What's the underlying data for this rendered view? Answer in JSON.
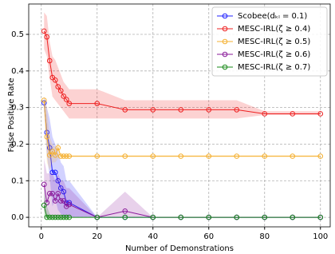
{
  "chart_data": {
    "type": "line",
    "x_label": "Number of Demonstrations",
    "y_label": "False Positive Rate",
    "x": [
      1,
      2,
      3,
      4,
      5,
      6,
      7,
      8,
      9,
      10,
      20,
      30,
      40,
      50,
      60,
      70,
      80,
      90,
      100
    ],
    "xlim": [
      -4.5,
      103.5
    ],
    "xticks": [
      0,
      20,
      40,
      60,
      80,
      100
    ],
    "ylim": [
      -0.026,
      0.583
    ],
    "yticks": [
      {
        "value": 0,
        "label": "0.0"
      },
      0.1,
      0.2,
      0.3,
      0.4,
      0.5
    ],
    "grid": true,
    "legend": "upper right",
    "series": [
      {
        "name": "Scobee(dₖₗ = 0.1)",
        "color": "#2020ff",
        "values": [
          0.313,
          0.232,
          0.19,
          0.123,
          0.123,
          0.1,
          0.08,
          0.07,
          0.04,
          0.04,
          0,
          0,
          0,
          0,
          0,
          0,
          0,
          0,
          0
        ],
        "upper": [
          0.33,
          0.3,
          0.27,
          0.22,
          0.2,
          0.18,
          0.15,
          0.14,
          0.1,
          0.1,
          0,
          0,
          0,
          0,
          0,
          0,
          0,
          0,
          0
        ],
        "lower": [
          0.3,
          0.17,
          0.11,
          0.03,
          0.05,
          0.02,
          0.01,
          0,
          0,
          0,
          0,
          0,
          0,
          0,
          0,
          0,
          0,
          0,
          0
        ]
      },
      {
        "name": "MESC-IRL(ζ ≥ 0.4)",
        "color": "#ee2020",
        "values": [
          0.509,
          0.493,
          0.428,
          0.382,
          0.375,
          0.357,
          0.346,
          0.331,
          0.322,
          0.311,
          0.311,
          0.294,
          0.294,
          0.294,
          0.294,
          0.294,
          0.283,
          0.283,
          0.283
        ],
        "upper": [
          0.56,
          0.55,
          0.48,
          0.44,
          0.43,
          0.41,
          0.39,
          0.37,
          0.36,
          0.35,
          0.35,
          0.32,
          0.32,
          0.32,
          0.32,
          0.32,
          0.29,
          0.29,
          0.29
        ],
        "lower": [
          0.46,
          0.44,
          0.38,
          0.33,
          0.32,
          0.31,
          0.3,
          0.29,
          0.28,
          0.27,
          0.27,
          0.27,
          0.27,
          0.27,
          0.27,
          0.27,
          0.28,
          0.28,
          0.28
        ]
      },
      {
        "name": "MESC-IRL(ζ ≥ 0.5)",
        "color": "#f5b030",
        "values": [
          0.32,
          0.22,
          0.17,
          0.18,
          0.17,
          0.19,
          0.167,
          0.167,
          0.167,
          0.167,
          0.167,
          0.167,
          0.167,
          0.167,
          0.167,
          0.167,
          0.167,
          0.167,
          0.167
        ],
        "upper": [
          0.33,
          0.3,
          0.22,
          0.2,
          0.19,
          0.2,
          0.17,
          0.17,
          0.17,
          0.17,
          0.17,
          0.17,
          0.17,
          0.17,
          0.17,
          0.17,
          0.17,
          0.17,
          0.17
        ],
        "lower": [
          0.3,
          0.15,
          0.13,
          0.15,
          0.15,
          0.16,
          0.165,
          0.165,
          0.165,
          0.165,
          0.165,
          0.165,
          0.165,
          0.165,
          0.165,
          0.165,
          0.165,
          0.165,
          0.165
        ]
      },
      {
        "name": "MESC-IRL(ζ ≥ 0.6)",
        "color": "#8a1a9a",
        "values": [
          0.09,
          0.04,
          0.065,
          0.065,
          0.045,
          0.065,
          0.045,
          0.045,
          0.03,
          0.035,
          0,
          0.017,
          0,
          0,
          0,
          0,
          0,
          0,
          0
        ],
        "upper": [
          0.16,
          0.12,
          0.12,
          0.12,
          0.1,
          0.12,
          0.1,
          0.1,
          0.08,
          0.08,
          0,
          0.07,
          0,
          0,
          0,
          0,
          0,
          0,
          0
        ],
        "lower": [
          0.02,
          0,
          0,
          0,
          0,
          0,
          0,
          0,
          0,
          0,
          0,
          0,
          0,
          0,
          0,
          0,
          0,
          0,
          0
        ]
      },
      {
        "name": "MESC-IRL(ζ ≥ 0.7)",
        "color": "#1a8a1a",
        "values": [
          0.033,
          0,
          0,
          0,
          0,
          0,
          0,
          0,
          0,
          0,
          0,
          0,
          0,
          0,
          0,
          0,
          0,
          0,
          0
        ],
        "upper": [
          0.07,
          0.03,
          0.01,
          0,
          0,
          0,
          0,
          0,
          0,
          0,
          0,
          0,
          0,
          0,
          0,
          0,
          0,
          0,
          0
        ],
        "lower": [
          0,
          0,
          0,
          0,
          0,
          0,
          0,
          0,
          0,
          0,
          0,
          0,
          0,
          0,
          0,
          0,
          0,
          0,
          0
        ]
      }
    ]
  }
}
